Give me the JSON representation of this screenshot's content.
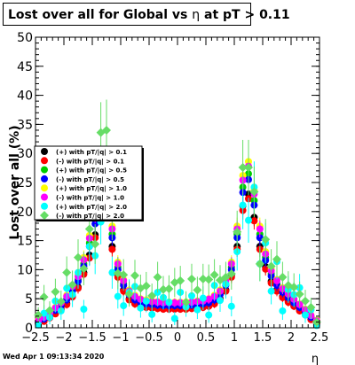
{
  "title": "Lost over all for Global vs ",
  "title_eta": "η",
  "title_suffix": " at pT > 0.11",
  "datestamp": "Wed Apr  1 09:13:34 2020",
  "chart_data": {
    "type": "scatter",
    "xlabel": "η",
    "ylabel": "Lost over all (%)",
    "xlim": [
      -2.5,
      2.5
    ],
    "ylim": [
      0,
      50
    ],
    "x_ticks": [
      -2.5,
      -2,
      -1.5,
      -1,
      -0.5,
      0,
      0.5,
      1,
      1.5,
      2,
      2.5
    ],
    "x_tick_labels": [
      "−2.5",
      "−2",
      "−1.5",
      "−1",
      "−0.5",
      "0",
      "0.5",
      "1",
      "1.5",
      "2",
      "2.5"
    ],
    "y_ticks": [
      0,
      5,
      10,
      15,
      20,
      25,
      30,
      35,
      40,
      45,
      50
    ],
    "y_tick_labels": [
      "0",
      "5",
      "10",
      "15",
      "20",
      "25",
      "30",
      "35",
      "40",
      "45",
      "50"
    ],
    "legend_position": "left-middle",
    "series": [
      {
        "name": "(+) with pT/|q| > 0.1",
        "color": "#000000",
        "marker": "circle",
        "x": [
          -2.45,
          -2.35,
          -2.25,
          -2.15,
          -2.05,
          -1.95,
          -1.85,
          -1.75,
          -1.65,
          -1.55,
          -1.45,
          -1.35,
          -1.25,
          -1.15,
          -1.05,
          -0.95,
          -0.85,
          -0.75,
          -0.65,
          -0.55,
          -0.45,
          -0.35,
          -0.25,
          -0.15,
          -0.05,
          0.05,
          0.15,
          0.25,
          0.35,
          0.45,
          0.55,
          0.65,
          0.75,
          0.85,
          0.95,
          1.05,
          1.15,
          1.25,
          1.35,
          1.45,
          1.55,
          1.65,
          1.75,
          1.85,
          1.95,
          2.05,
          2.15,
          2.25,
          2.35,
          2.45
        ],
        "y": [
          0.8,
          1.2,
          1.8,
          2.5,
          3.2,
          4.2,
          5.5,
          7,
          9.5,
          12.5,
          16,
          20.5,
          22,
          14,
          9,
          6.5,
          5,
          4.2,
          3.8,
          3.6,
          3.5,
          3.4,
          3.3,
          3.3,
          3.3,
          3.3,
          3.3,
          3.4,
          3.5,
          3.6,
          3.8,
          4.2,
          5,
          6.5,
          9,
          14,
          21,
          23,
          19,
          14,
          10.5,
          8,
          6.5,
          5.4,
          4.6,
          3.8,
          3,
          2.3,
          1.5,
          0.8
        ]
      },
      {
        "name": "(-) with pT/|q| > 0.1",
        "color": "#ff0000",
        "marker": "circle",
        "x": [
          -2.45,
          -2.35,
          -2.25,
          -2.15,
          -2.05,
          -1.95,
          -1.85,
          -1.75,
          -1.65,
          -1.55,
          -1.45,
          -1.35,
          -1.25,
          -1.15,
          -1.05,
          -0.95,
          -0.85,
          -0.75,
          -0.65,
          -0.55,
          -0.45,
          -0.35,
          -0.25,
          -0.15,
          -0.05,
          0.05,
          0.15,
          0.25,
          0.35,
          0.45,
          0.55,
          0.65,
          0.75,
          0.85,
          0.95,
          1.05,
          1.15,
          1.25,
          1.35,
          1.45,
          1.55,
          1.65,
          1.75,
          1.85,
          1.95,
          2.05,
          2.15,
          2.25,
          2.35,
          2.45
        ],
        "y": [
          0.7,
          1.1,
          1.7,
          2.4,
          3.1,
          4,
          5.3,
          6.8,
          9.2,
          12,
          15.5,
          19.8,
          21.2,
          13.5,
          8.7,
          6.3,
          4.8,
          4.1,
          3.7,
          3.5,
          3.4,
          3.3,
          3.2,
          3.2,
          3.2,
          3.2,
          3.2,
          3.3,
          3.4,
          3.5,
          3.7,
          4.1,
          4.8,
          6.3,
          8.7,
          13.5,
          20.2,
          22.2,
          18.4,
          13.5,
          10.1,
          7.7,
          6.3,
          5.2,
          4.4,
          3.7,
          2.9,
          2.2,
          1.4,
          0.7
        ]
      },
      {
        "name": "(+) with pT/|q| > 0.5",
        "color": "#00cc00",
        "marker": "circle",
        "x": [
          -2.45,
          -2.35,
          -2.25,
          -2.15,
          -2.05,
          -1.95,
          -1.85,
          -1.75,
          -1.65,
          -1.55,
          -1.45,
          -1.35,
          -1.25,
          -1.15,
          -1.05,
          -0.95,
          -0.85,
          -0.75,
          -0.65,
          -0.55,
          -0.45,
          -0.35,
          -0.25,
          -0.15,
          -0.05,
          0.05,
          0.15,
          0.25,
          0.35,
          0.45,
          0.55,
          0.65,
          0.75,
          0.85,
          0.95,
          1.05,
          1.15,
          1.25,
          1.35,
          1.45,
          1.55,
          1.65,
          1.75,
          1.85,
          1.95,
          2.05,
          2.15,
          2.25,
          2.35,
          2.45
        ],
        "y": [
          1.1,
          1.6,
          2.3,
          3.1,
          3.9,
          5,
          6.6,
          8.3,
          11,
          14.6,
          18.6,
          23.7,
          25.3,
          16.1,
          10.4,
          7.6,
          5.9,
          5,
          4.5,
          4.3,
          4.1,
          4,
          3.9,
          3.9,
          3.9,
          3.9,
          3.9,
          4,
          4.1,
          4.3,
          4.5,
          5,
          5.9,
          7.6,
          10.4,
          16.1,
          24.2,
          26.5,
          21.9,
          16.1,
          12.1,
          9.3,
          7.6,
          6.3,
          5.4,
          4.5,
          3.6,
          2.8,
          1.9,
          1.1
        ]
      },
      {
        "name": "(-) with pT/|q| > 0.5",
        "color": "#0000ff",
        "marker": "circle",
        "x": [
          -2.45,
          -2.35,
          -2.25,
          -2.15,
          -2.05,
          -1.95,
          -1.85,
          -1.75,
          -1.65,
          -1.55,
          -1.45,
          -1.35,
          -1.25,
          -1.15,
          -1.05,
          -0.95,
          -0.85,
          -0.75,
          -0.65,
          -0.55,
          -0.45,
          -0.35,
          -0.25,
          -0.15,
          -0.05,
          0.05,
          0.15,
          0.25,
          0.35,
          0.45,
          0.55,
          0.65,
          0.75,
          0.85,
          0.95,
          1.05,
          1.15,
          1.25,
          1.35,
          1.45,
          1.55,
          1.65,
          1.75,
          1.85,
          1.95,
          2.05,
          2.15,
          2.25,
          2.35,
          2.45
        ],
        "y": [
          1,
          1.5,
          2.2,
          3,
          3.8,
          4.8,
          6.3,
          8,
          10.6,
          14,
          17.9,
          22.8,
          24.4,
          15.5,
          10,
          7.3,
          5.7,
          4.8,
          4.3,
          4.1,
          4,
          3.9,
          3.8,
          3.8,
          3.8,
          3.8,
          3.8,
          3.9,
          4,
          4.1,
          4.3,
          4.8,
          5.7,
          7.3,
          10,
          15.5,
          23.3,
          25.5,
          21.1,
          15.5,
          11.6,
          8.9,
          7.3,
          6.1,
          5.2,
          4.3,
          3.5,
          2.7,
          1.8,
          1
        ]
      },
      {
        "name": "(+) with pT/|q| > 1.0",
        "color": "#ffff00",
        "marker": "circle",
        "x": [
          -2.45,
          -2.35,
          -2.25,
          -2.15,
          -2.05,
          -1.95,
          -1.85,
          -1.75,
          -1.65,
          -1.55,
          -1.45,
          -1.35,
          -1.25,
          -1.15,
          -1.05,
          -0.95,
          -0.85,
          -0.75,
          -0.65,
          -0.55,
          -0.45,
          -0.35,
          -0.25,
          -0.15,
          -0.05,
          0.05,
          0.15,
          0.25,
          0.35,
          0.45,
          0.55,
          0.65,
          0.75,
          0.85,
          0.95,
          1.05,
          1.15,
          1.25,
          1.35,
          1.45,
          1.55,
          1.65,
          1.75,
          1.85,
          1.95,
          2.05,
          2.15,
          2.25,
          2.35,
          2.45
        ],
        "y": [
          1.3,
          1.9,
          2.6,
          3.5,
          4.4,
          5.6,
          7.3,
          9.1,
          12.1,
          15.9,
          20.2,
          25.7,
          27.4,
          17.5,
          11.3,
          8.3,
          6.5,
          5.6,
          5,
          4.8,
          4.6,
          4.5,
          4.4,
          4.4,
          4.4,
          4.4,
          4.4,
          4.5,
          4.6,
          4.8,
          5,
          5.6,
          6.5,
          8.3,
          11.3,
          17.5,
          26.2,
          28.6,
          23.7,
          17.5,
          13.1,
          10.1,
          8.3,
          6.9,
          6,
          5,
          4.1,
          3.2,
          2.2,
          1.3
        ]
      },
      {
        "name": "(-) with pT/|q| > 1.0",
        "color": "#ff00ff",
        "marker": "circle",
        "x": [
          -2.45,
          -2.35,
          -2.25,
          -2.15,
          -2.05,
          -1.95,
          -1.85,
          -1.75,
          -1.65,
          -1.55,
          -1.45,
          -1.35,
          -1.25,
          -1.15,
          -1.05,
          -0.95,
          -0.85,
          -0.75,
          -0.65,
          -0.55,
          -0.45,
          -0.35,
          -0.25,
          -0.15,
          -0.05,
          0.05,
          0.15,
          0.25,
          0.35,
          0.45,
          0.55,
          0.65,
          0.75,
          0.85,
          0.95,
          1.05,
          1.15,
          1.25,
          1.35,
          1.45,
          1.55,
          1.65,
          1.75,
          1.85,
          1.95,
          2.05,
          2.15,
          2.25,
          2.35,
          2.45
        ],
        "y": [
          1.2,
          1.8,
          2.5,
          3.4,
          4.3,
          5.4,
          7.1,
          8.8,
          11.7,
          15.4,
          19.6,
          24.9,
          26.6,
          17,
          11,
          8.1,
          6.3,
          5.4,
          4.9,
          4.6,
          4.5,
          4.4,
          4.3,
          4.3,
          4.3,
          4.3,
          4.3,
          4.4,
          4.5,
          4.6,
          4.9,
          5.4,
          6.3,
          8.1,
          11,
          17,
          25.4,
          27.8,
          23,
          17,
          12.7,
          9.8,
          8.1,
          6.7,
          5.8,
          4.9,
          4,
          3.1,
          2.1,
          1.2
        ]
      },
      {
        "name": "(+) with pT/|q| > 2.0",
        "color": "#00ffff",
        "marker": "circle",
        "x": [
          -2.45,
          -2.35,
          -2.25,
          -2.15,
          -2.05,
          -1.95,
          -1.85,
          -1.75,
          -1.65,
          -1.55,
          -1.45,
          -1.35,
          -1.25,
          -1.15,
          -1.05,
          -0.95,
          -0.85,
          -0.75,
          -0.65,
          -0.55,
          -0.45,
          -0.35,
          -0.25,
          -0.15,
          -0.05,
          0.05,
          0.15,
          0.25,
          0.35,
          0.45,
          0.55,
          0.65,
          0.75,
          0.85,
          0.95,
          1.05,
          1.15,
          1.25,
          1.35,
          1.45,
          1.55,
          1.65,
          1.75,
          1.85,
          1.95,
          2.05,
          2.15,
          2.25,
          2.35,
          2.45
        ],
        "y": [
          0.5,
          2.5,
          1.8,
          4.6,
          2.9,
          6.8,
          5.7,
          9.5,
          3.2,
          14,
          12.4,
          18.2,
          29.4,
          9.5,
          5.4,
          3.8,
          6.1,
          7.1,
          3.4,
          4.6,
          2.3,
          6.1,
          5.2,
          4.4,
          1.6,
          6.1,
          3.6,
          5.5,
          3.1,
          5.1,
          2.2,
          7.3,
          4.7,
          7.5,
          3.7,
          13.1,
          21.1,
          18.5,
          24.2,
          11,
          14.6,
          6.3,
          11.4,
          2.9,
          6.6,
          5.7,
          6.9,
          2.2,
          3.1,
          0.4
        ]
      },
      {
        "name": "(-) with pT/|q| > 2.0",
        "color": "#66dd66",
        "marker": "diamond",
        "x": [
          -2.45,
          -2.35,
          -2.25,
          -2.15,
          -2.05,
          -1.95,
          -1.85,
          -1.75,
          -1.65,
          -1.55,
          -1.45,
          -1.35,
          -1.25,
          -1.15,
          -1.05,
          -0.95,
          -0.85,
          -0.75,
          -0.65,
          -0.55,
          -0.45,
          -0.35,
          -0.25,
          -0.15,
          -0.05,
          0.05,
          0.15,
          0.25,
          0.35,
          0.45,
          0.55,
          0.65,
          0.75,
          0.85,
          0.95,
          1.05,
          1.15,
          1.25,
          1.35,
          1.45,
          1.55,
          1.65,
          1.75,
          1.85,
          1.95,
          2.05,
          2.15,
          2.25,
          2.35,
          2.45
        ],
        "y": [
          2.2,
          5.3,
          3,
          6.2,
          4.5,
          9.5,
          7.4,
          12.1,
          10.2,
          17,
          14.4,
          33.6,
          34,
          19,
          9.4,
          9.1,
          5.8,
          9,
          6.8,
          7.2,
          5.5,
          8.7,
          6.6,
          6.7,
          7.8,
          8.1,
          4.4,
          8.4,
          6.5,
          8.4,
          8.3,
          9.1,
          8.2,
          8.7,
          9.3,
          16.5,
          27.6,
          27.6,
          23.4,
          11,
          15.2,
          10.6,
          11.8,
          8.7,
          7.3,
          7,
          5.8,
          4.6,
          3.5,
          1
        ]
      }
    ]
  }
}
